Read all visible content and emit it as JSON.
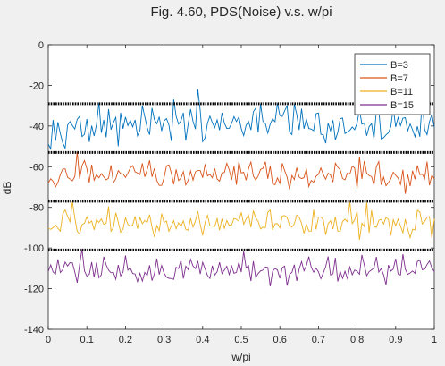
{
  "chart_data": {
    "type": "line",
    "title": "Fig. 4.60, PDS(Noise) v.s. w/pi",
    "xlabel": "w/pi",
    "ylabel": "dB",
    "xlim": [
      0,
      1
    ],
    "ylim": [
      -140,
      0
    ],
    "xticks": [
      0,
      0.1,
      0.2,
      0.3,
      0.4,
      0.5,
      0.6,
      0.7,
      0.8,
      0.9,
      1
    ],
    "xtick_labels": [
      "0",
      "0.1",
      "0.2",
      "0.3",
      "0.4",
      "0.5",
      "0.6",
      "0.7",
      "0.8",
      "0.9",
      "1"
    ],
    "yticks": [
      -140,
      -120,
      -100,
      -80,
      -60,
      -40,
      -20,
      0
    ],
    "ytick_labels": [
      "-140",
      "-120",
      "-100",
      "-80",
      "-60",
      "-40",
      "-20",
      "0"
    ],
    "grid": false,
    "legend_position": "top-right",
    "series": [
      {
        "name": "B=3",
        "color": "#0072BD",
        "mean": -40,
        "spread": 6,
        "spike": 14
      },
      {
        "name": "B=7",
        "color": "#D95319",
        "mean": -64,
        "spread": 4,
        "spike": 8
      },
      {
        "name": "B=11",
        "color": "#EDB120",
        "mean": -88,
        "spread": 4,
        "spike": 7
      },
      {
        "name": "B=15",
        "color": "#7E2F8E",
        "mean": -111,
        "spread": 4,
        "spike": 8
      }
    ],
    "reference_lines": [
      {
        "y": -29,
        "color": "#000000",
        "style": "dotted"
      },
      {
        "y": -53,
        "color": "#000000",
        "style": "dotted"
      },
      {
        "y": -77,
        "color": "#000000",
        "style": "dotted"
      },
      {
        "y": -101,
        "color": "#000000",
        "style": "dotted"
      }
    ]
  }
}
